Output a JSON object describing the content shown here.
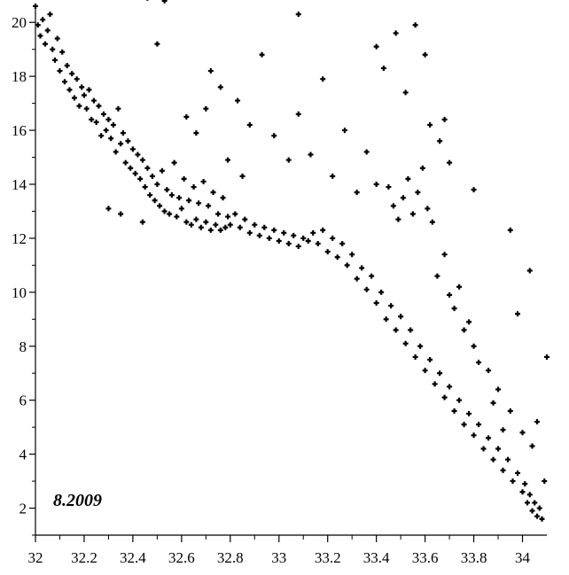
{
  "chart_data": {
    "type": "scatter",
    "title": "",
    "xlabel": "",
    "ylabel": "",
    "annotation": "8.2009",
    "xlim": [
      32.0,
      34.1
    ],
    "ylim": [
      1.0,
      20.5
    ],
    "x_ticks": [
      32,
      32.2,
      32.4,
      32.6,
      32.8,
      33,
      33.2,
      33.4,
      33.6,
      33.8,
      34
    ],
    "x_tick_labels": [
      "32",
      "32.2",
      "32.4",
      "32.6",
      "32.8",
      "33",
      "33.2",
      "33.4",
      "33.6",
      "33.8",
      "34"
    ],
    "y_ticks": [
      2,
      4,
      6,
      8,
      10,
      12,
      14,
      16,
      18,
      20
    ],
    "y_tick_labels": [
      "2",
      "4",
      "6",
      "8",
      "10",
      "12",
      "14",
      "16",
      "18",
      "20"
    ],
    "grid": false,
    "legend": "none",
    "marker": "plus",
    "marker_color": "#000000",
    "series": [
      {
        "points": [
          [
            32.0,
            20.6
          ],
          [
            32.01,
            19.9
          ],
          [
            32.02,
            19.5
          ],
          [
            32.03,
            20.1
          ],
          [
            32.04,
            19.2
          ],
          [
            32.05,
            19.7
          ],
          [
            32.06,
            20.3
          ],
          [
            32.07,
            19.0
          ],
          [
            32.08,
            18.6
          ],
          [
            32.09,
            19.4
          ],
          [
            32.1,
            18.2
          ],
          [
            32.11,
            18.9
          ],
          [
            32.12,
            17.8
          ],
          [
            32.13,
            18.4
          ],
          [
            32.14,
            17.5
          ],
          [
            32.15,
            18.1
          ],
          [
            32.16,
            17.2
          ],
          [
            32.17,
            17.9
          ],
          [
            32.18,
            16.9
          ],
          [
            32.19,
            17.6
          ],
          [
            32.2,
            17.3
          ],
          [
            32.21,
            16.8
          ],
          [
            32.22,
            17.5
          ],
          [
            32.23,
            16.4
          ],
          [
            32.24,
            17.1
          ],
          [
            32.25,
            16.3
          ],
          [
            32.26,
            16.9
          ],
          [
            32.27,
            15.8
          ],
          [
            32.28,
            16.6
          ],
          [
            32.29,
            16.0
          ],
          [
            32.3,
            16.4
          ],
          [
            32.31,
            15.7
          ],
          [
            32.32,
            16.2
          ],
          [
            32.33,
            15.2
          ],
          [
            32.34,
            16.8
          ],
          [
            32.35,
            15.5
          ],
          [
            32.36,
            15.9
          ],
          [
            32.37,
            14.8
          ],
          [
            32.38,
            15.6
          ],
          [
            32.39,
            14.6
          ],
          [
            32.4,
            15.3
          ],
          [
            32.41,
            14.4
          ],
          [
            32.42,
            15.1
          ],
          [
            32.43,
            14.2
          ],
          [
            32.44,
            14.9
          ],
          [
            32.45,
            13.9
          ],
          [
            32.46,
            14.6
          ],
          [
            32.47,
            13.6
          ],
          [
            32.48,
            14.3
          ],
          [
            32.49,
            13.4
          ],
          [
            32.5,
            14.0
          ],
          [
            32.51,
            13.2
          ],
          [
            32.52,
            14.5
          ],
          [
            32.53,
            13.0
          ],
          [
            32.54,
            13.8
          ],
          [
            32.55,
            12.9
          ],
          [
            32.56,
            13.6
          ],
          [
            32.57,
            14.8
          ],
          [
            32.58,
            12.8
          ],
          [
            32.59,
            13.5
          ],
          [
            32.6,
            13.1
          ],
          [
            32.61,
            14.2
          ],
          [
            32.62,
            12.6
          ],
          [
            32.63,
            13.4
          ],
          [
            32.64,
            12.5
          ],
          [
            32.65,
            13.9
          ],
          [
            32.66,
            12.7
          ],
          [
            32.67,
            13.3
          ],
          [
            32.68,
            12.4
          ],
          [
            32.69,
            14.1
          ],
          [
            32.7,
            12.6
          ],
          [
            32.71,
            13.2
          ],
          [
            32.72,
            12.3
          ],
          [
            32.73,
            13.7
          ],
          [
            32.74,
            12.5
          ],
          [
            32.75,
            12.9
          ],
          [
            32.76,
            12.3
          ],
          [
            32.77,
            13.5
          ],
          [
            32.78,
            12.4
          ],
          [
            32.79,
            12.8
          ],
          [
            32.8,
            12.5
          ],
          [
            32.82,
            12.9
          ],
          [
            32.84,
            12.4
          ],
          [
            32.86,
            12.7
          ],
          [
            32.88,
            12.2
          ],
          [
            32.9,
            12.5
          ],
          [
            32.92,
            12.1
          ],
          [
            32.94,
            12.4
          ],
          [
            32.96,
            12.0
          ],
          [
            32.98,
            12.3
          ],
          [
            33.0,
            11.9
          ],
          [
            33.02,
            12.2
          ],
          [
            33.04,
            11.8
          ],
          [
            33.06,
            12.1
          ],
          [
            33.08,
            11.7
          ],
          [
            33.1,
            12.0
          ],
          [
            33.12,
            11.9
          ],
          [
            33.14,
            12.2
          ],
          [
            33.16,
            11.8
          ],
          [
            33.18,
            12.3
          ],
          [
            33.2,
            11.5
          ],
          [
            33.22,
            12.0
          ],
          [
            33.24,
            11.3
          ],
          [
            33.26,
            11.8
          ],
          [
            33.28,
            11.0
          ],
          [
            33.3,
            11.4
          ],
          [
            33.32,
            10.5
          ],
          [
            33.34,
            10.9
          ],
          [
            33.36,
            10.1
          ],
          [
            33.38,
            10.6
          ],
          [
            33.4,
            9.6
          ],
          [
            33.42,
            10.0
          ],
          [
            33.44,
            9.0
          ],
          [
            33.46,
            9.5
          ],
          [
            33.48,
            8.6
          ],
          [
            33.5,
            9.1
          ],
          [
            33.52,
            8.1
          ],
          [
            33.54,
            8.6
          ],
          [
            33.56,
            7.6
          ],
          [
            33.58,
            8.0
          ],
          [
            33.6,
            7.1
          ],
          [
            33.62,
            7.5
          ],
          [
            33.64,
            6.6
          ],
          [
            33.66,
            7.0
          ],
          [
            33.68,
            6.1
          ],
          [
            33.7,
            6.5
          ],
          [
            33.72,
            5.6
          ],
          [
            33.74,
            6.0
          ],
          [
            33.76,
            5.1
          ],
          [
            33.78,
            5.5
          ],
          [
            33.8,
            4.7
          ],
          [
            33.82,
            5.1
          ],
          [
            33.84,
            4.2
          ],
          [
            33.86,
            4.6
          ],
          [
            33.88,
            3.8
          ],
          [
            33.9,
            4.2
          ],
          [
            33.92,
            3.4
          ],
          [
            33.94,
            3.8
          ],
          [
            33.96,
            3.0
          ],
          [
            33.98,
            3.3
          ],
          [
            34.0,
            2.6
          ],
          [
            34.01,
            2.9
          ],
          [
            34.02,
            2.2
          ],
          [
            34.03,
            2.5
          ],
          [
            34.04,
            1.9
          ],
          [
            34.05,
            2.2
          ],
          [
            34.06,
            1.7
          ],
          [
            34.07,
            2.0
          ],
          [
            34.08,
            1.6
          ],
          [
            34.09,
            3.0
          ],
          [
            33.45,
            13.9
          ],
          [
            33.47,
            13.2
          ],
          [
            33.49,
            12.7
          ],
          [
            33.51,
            13.5
          ],
          [
            33.53,
            14.2
          ],
          [
            33.55,
            12.9
          ],
          [
            33.57,
            13.7
          ],
          [
            33.59,
            14.6
          ],
          [
            33.61,
            13.1
          ],
          [
            33.63,
            12.6
          ],
          [
            33.4,
            19.1
          ],
          [
            33.43,
            18.3
          ],
          [
            33.48,
            19.6
          ],
          [
            33.52,
            17.4
          ],
          [
            33.56,
            19.9
          ],
          [
            33.6,
            18.8
          ],
          [
            33.62,
            16.2
          ],
          [
            33.66,
            15.6
          ],
          [
            33.68,
            16.4
          ],
          [
            33.7,
            14.8
          ],
          [
            32.72,
            18.2
          ],
          [
            32.76,
            17.6
          ],
          [
            32.83,
            17.1
          ],
          [
            32.88,
            16.2
          ],
          [
            32.93,
            18.8
          ],
          [
            32.98,
            15.8
          ],
          [
            33.04,
            14.9
          ],
          [
            33.08,
            16.6
          ],
          [
            33.13,
            15.1
          ],
          [
            33.18,
            17.9
          ],
          [
            33.22,
            14.3
          ],
          [
            33.27,
            16.0
          ],
          [
            33.32,
            13.7
          ],
          [
            33.36,
            15.2
          ],
          [
            33.4,
            14.0
          ],
          [
            32.62,
            16.5
          ],
          [
            32.66,
            15.9
          ],
          [
            32.7,
            16.8
          ],
          [
            32.79,
            14.9
          ],
          [
            32.85,
            14.3
          ],
          [
            33.72,
            9.4
          ],
          [
            33.76,
            8.6
          ],
          [
            33.8,
            8.0
          ],
          [
            33.86,
            7.1
          ],
          [
            33.9,
            6.4
          ],
          [
            33.95,
            5.6
          ],
          [
            34.0,
            4.8
          ],
          [
            34.04,
            4.3
          ],
          [
            34.06,
            5.2
          ],
          [
            34.1,
            7.6
          ],
          [
            33.65,
            10.6
          ],
          [
            33.68,
            11.4
          ],
          [
            33.7,
            9.9
          ],
          [
            33.74,
            10.2
          ],
          [
            33.78,
            8.9
          ],
          [
            33.82,
            7.4
          ],
          [
            33.88,
            5.9
          ],
          [
            33.92,
            4.9
          ],
          [
            33.98,
            9.2
          ],
          [
            34.03,
            10.8
          ],
          [
            33.95,
            12.3
          ],
          [
            33.8,
            13.8
          ],
          [
            32.3,
            13.1
          ],
          [
            32.35,
            12.9
          ],
          [
            32.44,
            12.6
          ],
          [
            32.5,
            19.2
          ],
          [
            32.46,
            20.9
          ],
          [
            32.42,
            21.0
          ],
          [
            32.53,
            20.8
          ],
          [
            33.08,
            20.3
          ]
        ]
      }
    ]
  }
}
